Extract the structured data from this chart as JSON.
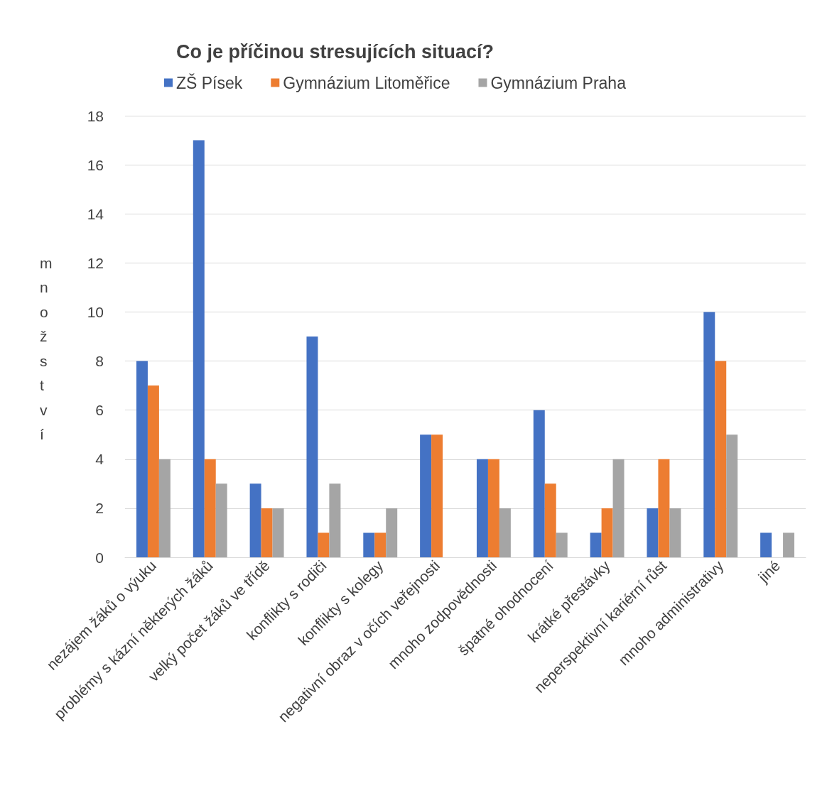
{
  "chart_data": {
    "type": "bar",
    "title": "Co je příčinou stresujících situací?",
    "ylabel": "množství",
    "categories": [
      "nezájem žáků o výuku",
      "problémy s kázní některých žáků",
      "velký počet žáků ve třídě",
      "konflikty s rodiči",
      "konflikty s kolegy",
      "negativní obraz v očích veřejnosti",
      "mnoho zodpovědnosti",
      "špatné ohodnocení",
      "krátké přestávky",
      "neperspektivní kariérní růst",
      "mnoho administrativy",
      "jiné"
    ],
    "series": [
      {
        "name": "ZŠ Písek",
        "color": "#4472c4",
        "values": [
          8,
          17,
          3,
          9,
          1,
          5,
          4,
          6,
          1,
          2,
          10,
          1
        ]
      },
      {
        "name": "Gymnázium Litoměřice",
        "color": "#ed7d31",
        "values": [
          7,
          4,
          2,
          1,
          1,
          5,
          4,
          3,
          2,
          4,
          8,
          0
        ]
      },
      {
        "name": "Gymnázium Praha",
        "color": "#a5a5a5",
        "values": [
          4,
          3,
          2,
          3,
          2,
          0,
          2,
          1,
          4,
          2,
          5,
          1
        ]
      }
    ],
    "ylim": [
      0,
      18
    ],
    "yticks": [
      0,
      2,
      4,
      6,
      8,
      10,
      12,
      14,
      16,
      18
    ],
    "grid": "y",
    "legend": "top"
  }
}
